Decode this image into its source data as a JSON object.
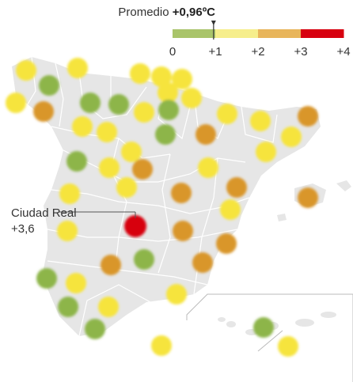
{
  "legend": {
    "average_label": "Promedio",
    "average_value": "+0,96ºC",
    "average_numeric": 0.96,
    "range": [
      0,
      4
    ],
    "segments": [
      {
        "from": 0,
        "to": 1,
        "color": "#a9c46a"
      },
      {
        "from": 1,
        "to": 2,
        "color": "#f6ee8c"
      },
      {
        "from": 2,
        "to": 3,
        "color": "#e8b55b"
      },
      {
        "from": 3,
        "to": 4,
        "color": "#d7000f"
      }
    ],
    "ticks": [
      "0",
      "+1",
      "+2",
      "+3",
      "+4"
    ]
  },
  "colors": {
    "map_fill": "#e6e6e6",
    "border": "#ffffff",
    "green": "#8db548",
    "yellow": "#f6e43c",
    "orange": "#d9962a",
    "red": "#d7000f"
  },
  "annotation": {
    "city": "Ciudad Real",
    "value": "+3,6"
  },
  "stations": [
    {
      "level": "yellow"
    },
    {
      "level": "yellow"
    },
    {
      "level": "green"
    },
    {
      "level": "yellow"
    },
    {
      "level": "orange"
    },
    {
      "level": "yellow"
    },
    {
      "level": "yellow"
    },
    {
      "level": "yellow"
    },
    {
      "level": "yellow"
    },
    {
      "level": "green"
    },
    {
      "level": "green"
    },
    {
      "level": "yellow"
    },
    {
      "level": "yellow"
    },
    {
      "level": "green"
    },
    {
      "level": "yellow"
    },
    {
      "level": "yellow"
    },
    {
      "level": "yellow"
    },
    {
      "level": "yellow"
    },
    {
      "level": "green"
    },
    {
      "level": "orange"
    },
    {
      "level": "orange"
    },
    {
      "level": "yellow"
    },
    {
      "level": "green"
    },
    {
      "level": "yellow"
    },
    {
      "level": "yellow"
    },
    {
      "level": "yellow"
    },
    {
      "level": "orange"
    },
    {
      "level": "yellow"
    },
    {
      "level": "yellow"
    },
    {
      "level": "orange"
    },
    {
      "level": "orange"
    },
    {
      "level": "yellow"
    },
    {
      "level": "orange"
    },
    {
      "level": "yellow"
    },
    {
      "level": "red"
    },
    {
      "level": "orange"
    },
    {
      "level": "orange"
    },
    {
      "level": "yellow"
    },
    {
      "level": "green"
    },
    {
      "level": "orange"
    },
    {
      "level": "orange"
    },
    {
      "level": "green"
    },
    {
      "level": "yellow"
    },
    {
      "level": "yellow"
    },
    {
      "level": "green"
    },
    {
      "level": "yellow"
    },
    {
      "level": "green"
    },
    {
      "level": "yellow"
    },
    {
      "level": "green"
    },
    {
      "level": "yellow"
    }
  ]
}
